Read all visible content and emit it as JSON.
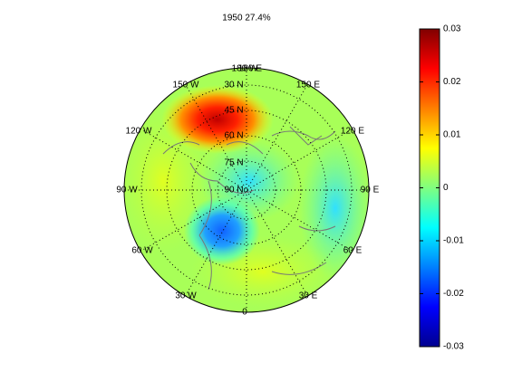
{
  "chart_data": {
    "type": "map",
    "title": "1950 27.4%",
    "labels": [
      "180 W",
      "180 E",
      "150 W",
      "150 E",
      "120 W",
      "120 E",
      "90 W",
      "90 E",
      "60 W",
      "60 E",
      "30 W",
      "30 E",
      "0",
      "90 N",
      "75 N",
      "60 N",
      "45 N",
      "30 N"
    ],
    "colorbar": {
      "lim": [
        -0.03,
        0.03
      ],
      "ticks": [
        -0.03,
        -0.02,
        -0.01,
        0,
        0.01,
        0.02,
        0.03
      ],
      "colormap": "jet"
    }
  }
}
